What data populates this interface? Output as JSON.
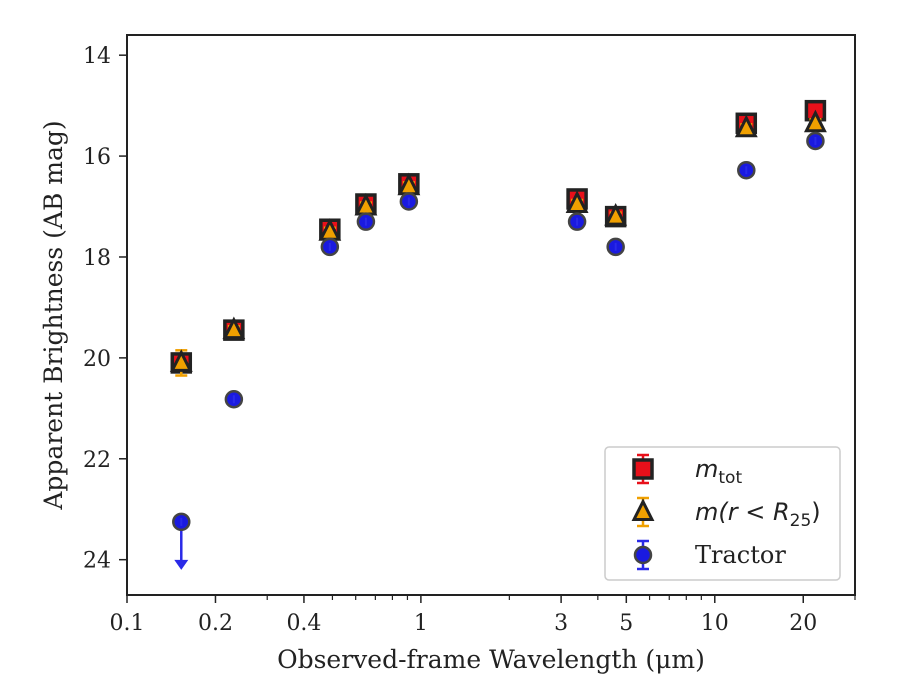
{
  "chart_data": {
    "type": "scatter",
    "xlabel": "Observed-frame Wavelength (μm)",
    "ylabel": "Apparent Brightness (AB mag)",
    "xscale": "log",
    "xlim": [
      0.1,
      30
    ],
    "ylim": [
      24.7,
      13.6
    ],
    "y_inverted": true,
    "x_ticks": [
      {
        "value": 0.1,
        "label": "0.1"
      },
      {
        "value": 0.2,
        "label": "0.2"
      },
      {
        "value": 0.4,
        "label": "0.4"
      },
      {
        "value": 1,
        "label": "1"
      },
      {
        "value": 3,
        "label": "3"
      },
      {
        "value": 5,
        "label": "5"
      },
      {
        "value": 10,
        "label": "10"
      },
      {
        "value": 20,
        "label": "20"
      }
    ],
    "y_ticks": [
      {
        "value": 14,
        "label": "14"
      },
      {
        "value": 16,
        "label": "16"
      },
      {
        "value": 18,
        "label": "18"
      },
      {
        "value": 20,
        "label": "20"
      },
      {
        "value": 22,
        "label": "22"
      },
      {
        "value": 24,
        "label": "24"
      }
    ],
    "grid": false,
    "legend_position": "lower-right",
    "series": [
      {
        "name": "m_tot",
        "label_main": "m",
        "label_sub": "tot",
        "marker": "square",
        "color": "#e8101a",
        "edge_color": "#222222",
        "error_color": "#e8101a",
        "points": [
          {
            "x": 0.153,
            "y": 20.1,
            "err": 0.15
          },
          {
            "x": 0.231,
            "y": 19.45,
            "err": 0.05
          },
          {
            "x": 0.49,
            "y": 17.45,
            "err": 0.05
          },
          {
            "x": 0.65,
            "y": 16.95,
            "err": 0.05
          },
          {
            "x": 0.91,
            "y": 16.55,
            "err": 0.05
          },
          {
            "x": 3.4,
            "y": 16.85,
            "err": 0.05
          },
          {
            "x": 4.6,
            "y": 17.2,
            "err": 0.05
          },
          {
            "x": 12.8,
            "y": 15.35,
            "err": 0.05
          },
          {
            "x": 22.0,
            "y": 15.1,
            "err": 0.05
          }
        ]
      },
      {
        "name": "m(r < R_25)",
        "label_main": "m(r < R",
        "label_sub": "25",
        "label_tail": ")",
        "marker": "triangle",
        "color": "#f0a000",
        "edge_color": "#222222",
        "error_color": "#f0a000",
        "points": [
          {
            "x": 0.153,
            "y": 20.1,
            "err": 0.25
          },
          {
            "x": 0.231,
            "y": 19.45,
            "err": 0.05
          },
          {
            "x": 0.49,
            "y": 17.5,
            "err": 0.05
          },
          {
            "x": 0.65,
            "y": 17.0,
            "err": 0.05
          },
          {
            "x": 0.91,
            "y": 16.6,
            "err": 0.05
          },
          {
            "x": 3.4,
            "y": 16.95,
            "err": 0.05
          },
          {
            "x": 4.6,
            "y": 17.2,
            "err": 0.05
          },
          {
            "x": 12.8,
            "y": 15.45,
            "err": 0.05
          },
          {
            "x": 22.0,
            "y": 15.35,
            "err": 0.05
          }
        ]
      },
      {
        "name": "Tractor",
        "label_main": "Tractor",
        "marker": "circle",
        "color": "#1a1ae0",
        "edge_color": "#444444",
        "error_color": "#2a2ae8",
        "points": [
          {
            "x": 0.153,
            "y": 23.25,
            "err": 0.0,
            "upper_limit": true
          },
          {
            "x": 0.231,
            "y": 20.82,
            "err": 0.05
          },
          {
            "x": 0.49,
            "y": 17.8,
            "err": 0.05
          },
          {
            "x": 0.65,
            "y": 17.3,
            "err": 0.05
          },
          {
            "x": 0.91,
            "y": 16.9,
            "err": 0.05
          },
          {
            "x": 3.4,
            "y": 17.3,
            "err": 0.05
          },
          {
            "x": 4.6,
            "y": 17.8,
            "err": 0.05
          },
          {
            "x": 12.8,
            "y": 16.28,
            "err": 0.05
          },
          {
            "x": 22.0,
            "y": 15.7,
            "err": 0.05
          }
        ]
      }
    ]
  }
}
